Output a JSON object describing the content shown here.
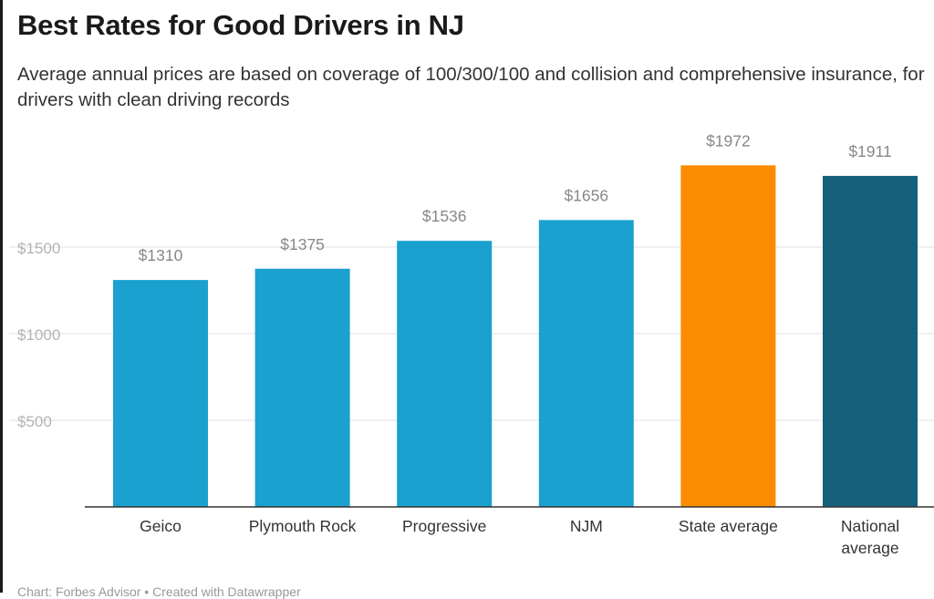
{
  "chart_data": {
    "type": "bar",
    "title": "Best Rates for Good Drivers in NJ",
    "subtitle": "Average annual prices are based on coverage of 100/300/100 and collision and comprehensive insurance, for drivers with clean driving records",
    "categories": [
      "Geico",
      "Plymouth Rock",
      "Progressive",
      "NJM",
      "State average",
      "National average"
    ],
    "values": [
      1310,
      1375,
      1536,
      1656,
      1972,
      1911
    ],
    "data_labels": [
      "$1310",
      "$1375",
      "$1536",
      "$1656",
      "$1972",
      "$1911"
    ],
    "colors": [
      "#1ba1cf",
      "#1ba1cf",
      "#1ba1cf",
      "#1ba1cf",
      "#fa8c00",
      "#15607a"
    ],
    "yticks": [
      500,
      1000,
      1500
    ],
    "ytick_labels": [
      "$500",
      "$1000",
      "$1500"
    ],
    "ylim": [
      0,
      2000
    ],
    "grid": true,
    "xlabel": "",
    "ylabel": ""
  },
  "footer": "Chart: Forbes Advisor • Created with Datawrapper"
}
